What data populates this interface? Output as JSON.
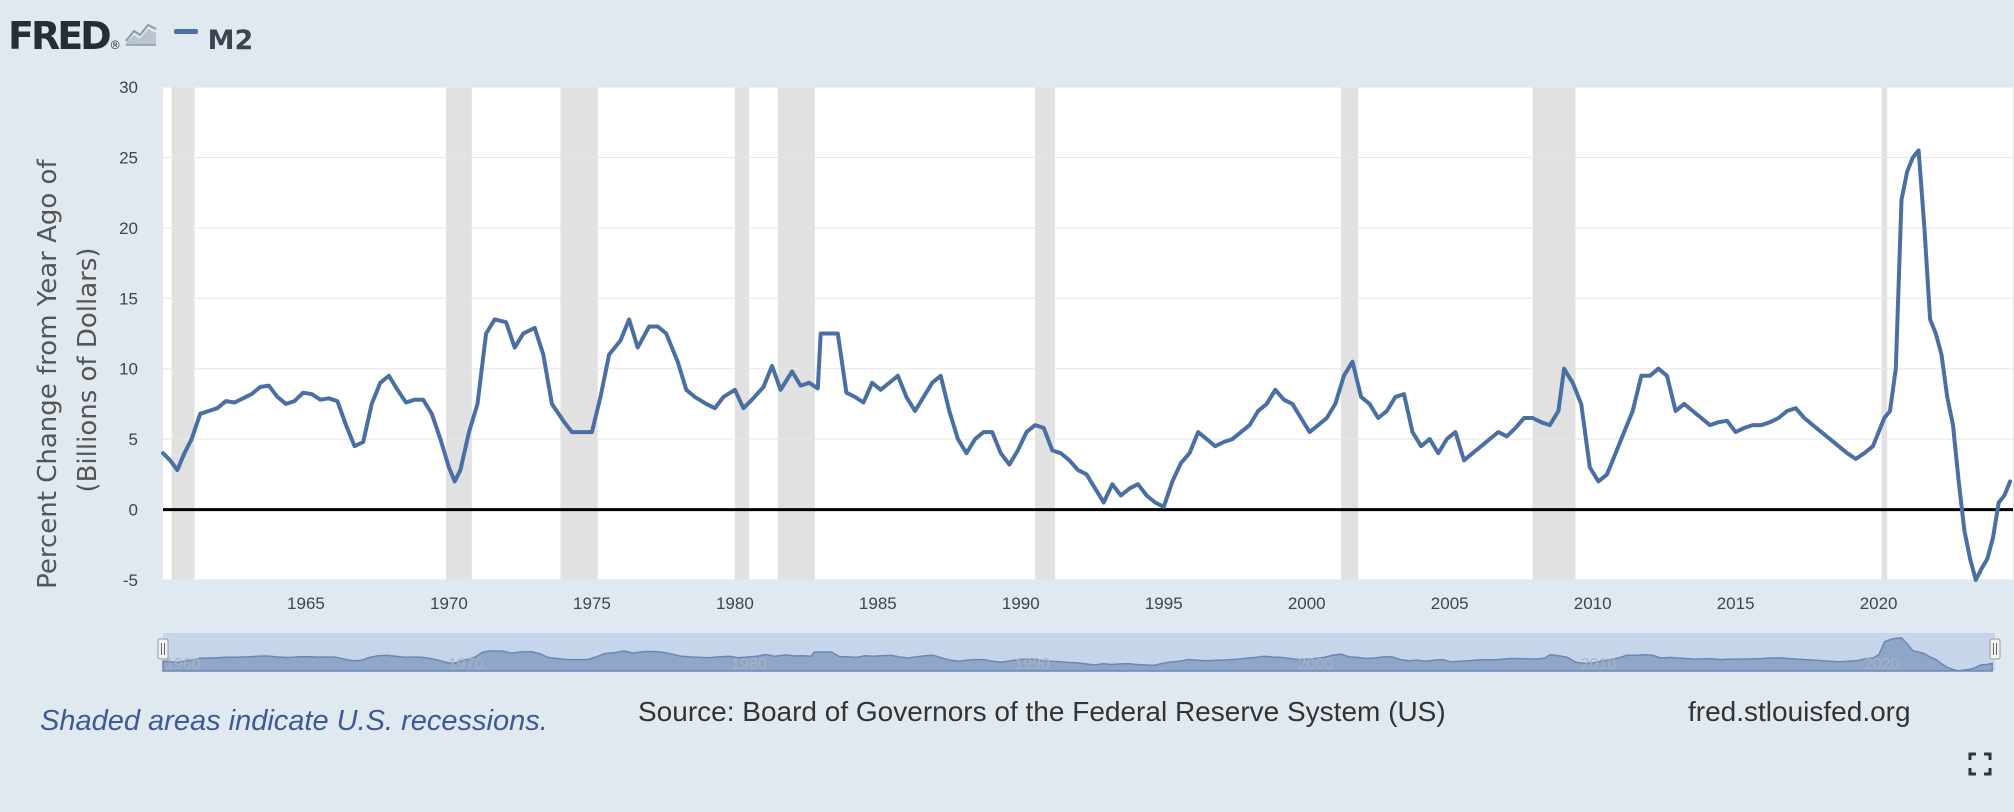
{
  "header": {
    "logo_text": "FRED",
    "logo_reg": "®",
    "logo_icon": "line-chart-icon",
    "legend_label": "M2"
  },
  "colors": {
    "series": "#4a6fa5",
    "recession": "#e1e1e1",
    "background": "#e1e9f0",
    "plot_background": "#ffffff",
    "zero_line": "#000000"
  },
  "footer": {
    "recessions_note": "Shaded areas indicate U.S. recessions.",
    "source": "Source: Board of Governors of the Federal Reserve System (US)",
    "site": "fred.stlouisfed.org"
  },
  "icons": {
    "fullscreen": "fullscreen-icon"
  },
  "chart_data": {
    "type": "line",
    "title": "",
    "xlabel": "",
    "ylabel": "Percent Change from Year Ago of (Billions of Dollars)",
    "ylabel_lines": [
      "Percent Change from Year Ago of",
      "(Billions of Dollars)"
    ],
    "xlim": [
      1960.0,
      2024.7
    ],
    "ylim": [
      -5,
      30
    ],
    "y_ticks": [
      30,
      25,
      20,
      15,
      10,
      5,
      0,
      -5
    ],
    "x_ticks": [
      1965,
      1970,
      1975,
      1980,
      1985,
      1990,
      1995,
      2000,
      2005,
      2010,
      2015,
      2020
    ],
    "navigator_ticks": [
      1960,
      1970,
      1980,
      1990,
      2000,
      2010,
      2020
    ],
    "grid": true,
    "legend": "top-left",
    "recessions": [
      [
        1960.3,
        1961.1
      ],
      [
        1969.9,
        1970.8
      ],
      [
        1973.9,
        1975.2
      ],
      [
        1980.0,
        1980.5
      ],
      [
        1981.5,
        1982.8
      ],
      [
        1990.5,
        1991.2
      ],
      [
        2001.2,
        2001.8
      ],
      [
        2007.9,
        2009.4
      ],
      [
        2020.1,
        2020.3
      ]
    ],
    "series": [
      {
        "name": "M2",
        "x": [
          1960.0,
          1960.25,
          1960.5,
          1960.75,
          1961.0,
          1961.3,
          1961.6,
          1961.9,
          1962.2,
          1962.5,
          1962.8,
          1963.1,
          1963.4,
          1963.7,
          1964.0,
          1964.3,
          1964.6,
          1964.9,
          1965.2,
          1965.5,
          1965.8,
          1966.1,
          1966.4,
          1966.7,
          1967.0,
          1967.3,
          1967.6,
          1967.9,
          1968.2,
          1968.5,
          1968.8,
          1969.1,
          1969.4,
          1969.7,
          1970.0,
          1970.2,
          1970.4,
          1970.7,
          1971.0,
          1971.3,
          1971.6,
          1972.0,
          1972.3,
          1972.6,
          1973.0,
          1973.3,
          1973.6,
          1974.0,
          1974.3,
          1974.6,
          1975.0,
          1975.3,
          1975.6,
          1976.0,
          1976.3,
          1976.6,
          1977.0,
          1977.3,
          1977.6,
          1978.0,
          1978.3,
          1978.6,
          1979.0,
          1979.3,
          1979.6,
          1980.0,
          1980.3,
          1980.6,
          1981.0,
          1981.3,
          1981.6,
          1982.0,
          1982.3,
          1982.6,
          1982.9,
          1983.0,
          1983.3,
          1983.6,
          1983.9,
          1984.2,
          1984.5,
          1984.8,
          1985.1,
          1985.4,
          1985.7,
          1986.0,
          1986.3,
          1986.6,
          1986.9,
          1987.2,
          1987.5,
          1987.8,
          1988.1,
          1988.4,
          1988.7,
          1989.0,
          1989.3,
          1989.6,
          1989.9,
          1990.2,
          1990.5,
          1990.8,
          1991.1,
          1991.4,
          1991.7,
          1992.0,
          1992.3,
          1992.6,
          1992.9,
          1993.2,
          1993.5,
          1993.8,
          1994.1,
          1994.4,
          1994.7,
          1995.0,
          1995.3,
          1995.6,
          1995.9,
          1996.2,
          1996.5,
          1996.8,
          1997.1,
          1997.4,
          1997.7,
          1998.0,
          1998.3,
          1998.6,
          1998.9,
          1999.2,
          1999.5,
          1999.8,
          2000.1,
          2000.4,
          2000.7,
          2001.0,
          2001.3,
          2001.6,
          2001.9,
          2002.2,
          2002.5,
          2002.8,
          2003.1,
          2003.4,
          2003.7,
          2004.0,
          2004.3,
          2004.6,
          2004.9,
          2005.2,
          2005.5,
          2005.8,
          2006.1,
          2006.4,
          2006.7,
          2007.0,
          2007.3,
          2007.6,
          2007.9,
          2008.2,
          2008.5,
          2008.8,
          2009.0,
          2009.3,
          2009.6,
          2009.9,
          2010.2,
          2010.5,
          2010.8,
          2011.1,
          2011.4,
          2011.7,
          2012.0,
          2012.3,
          2012.6,
          2012.9,
          2013.2,
          2013.5,
          2013.8,
          2014.1,
          2014.4,
          2014.7,
          2015.0,
          2015.3,
          2015.6,
          2015.9,
          2016.2,
          2016.5,
          2016.8,
          2017.1,
          2017.4,
          2017.7,
          2018.0,
          2018.3,
          2018.6,
          2018.9,
          2019.2,
          2019.5,
          2019.8,
          2020.0,
          2020.2,
          2020.4,
          2020.6,
          2020.8,
          2021.0,
          2021.2,
          2021.4,
          2021.6,
          2021.8,
          2022.0,
          2022.2,
          2022.4,
          2022.6,
          2022.8,
          2023.0,
          2023.2,
          2023.4,
          2023.6,
          2023.8,
          2024.0,
          2024.2,
          2024.4,
          2024.6
        ],
        "values": [
          4.0,
          3.5,
          2.8,
          4.0,
          5.0,
          6.8,
          7.0,
          7.2,
          7.7,
          7.6,
          7.9,
          8.2,
          8.7,
          8.8,
          8.0,
          7.5,
          7.7,
          8.3,
          8.2,
          7.8,
          7.9,
          7.7,
          6.0,
          4.5,
          4.8,
          7.5,
          9.0,
          9.5,
          8.5,
          7.6,
          7.8,
          7.8,
          6.8,
          5.0,
          3.0,
          2.0,
          2.8,
          5.5,
          7.5,
          12.5,
          13.5,
          13.3,
          11.5,
          12.5,
          12.9,
          11.0,
          7.5,
          6.3,
          5.5,
          5.5,
          5.5,
          8.0,
          11.0,
          12.0,
          13.5,
          11.5,
          13.0,
          13.0,
          12.5,
          10.5,
          8.5,
          8.0,
          7.5,
          7.2,
          8.0,
          8.5,
          7.2,
          7.8,
          8.7,
          10.2,
          8.5,
          9.8,
          8.8,
          9.0,
          8.6,
          12.5,
          12.5,
          12.5,
          8.3,
          8.0,
          7.6,
          9.0,
          8.5,
          9.0,
          9.5,
          8.0,
          7.0,
          8.0,
          9.0,
          9.5,
          7.0,
          5.0,
          4.0,
          5.0,
          5.5,
          5.5,
          4.0,
          3.2,
          4.2,
          5.5,
          6.0,
          5.8,
          4.2,
          4.0,
          3.5,
          2.8,
          2.5,
          1.5,
          0.5,
          1.8,
          1.0,
          1.5,
          1.8,
          1.0,
          0.5,
          0.2,
          2.0,
          3.3,
          4.0,
          5.5,
          5.0,
          4.5,
          4.8,
          5.0,
          5.5,
          6.0,
          7.0,
          7.5,
          8.5,
          7.8,
          7.5,
          6.5,
          5.5,
          6.0,
          6.5,
          7.5,
          9.5,
          10.5,
          8.0,
          7.5,
          6.5,
          7.0,
          8.0,
          8.2,
          5.5,
          4.5,
          5.0,
          4.0,
          5.0,
          5.5,
          3.5,
          4.0,
          4.5,
          5.0,
          5.5,
          5.2,
          5.8,
          6.5,
          6.5,
          6.2,
          6.0,
          7.0,
          10.0,
          9.0,
          7.5,
          3.0,
          2.0,
          2.5,
          4.0,
          5.5,
          7.0,
          9.5,
          9.5,
          10.0,
          9.5,
          7.0,
          7.5,
          7.0,
          6.5,
          6.0,
          6.2,
          6.3,
          5.5,
          5.8,
          6.0,
          6.0,
          6.2,
          6.5,
          7.0,
          7.2,
          6.5,
          6.0,
          5.5,
          5.0,
          4.5,
          4.0,
          3.6,
          4.0,
          4.5,
          5.5,
          6.5,
          7.0,
          10.0,
          22.0,
          24.0,
          25.0,
          25.5,
          20.0,
          13.5,
          12.5,
          11.0,
          8.0,
          6.0,
          2.0,
          -1.5,
          -3.5,
          -5.0,
          -4.2,
          -3.5,
          -2.0,
          0.5,
          1.0,
          2.0
        ]
      }
    ]
  }
}
